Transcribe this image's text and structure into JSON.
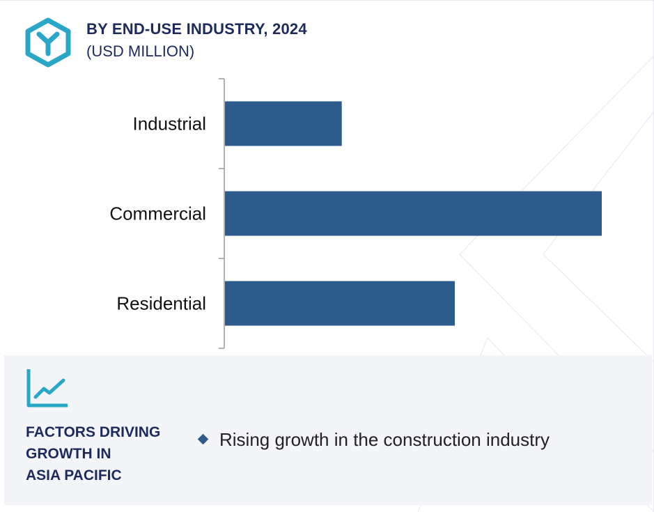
{
  "header": {
    "title": "BY END-USE INDUSTRY, 2024",
    "subtitle": "(USD MILLION)",
    "icon": "y-hexagon-icon"
  },
  "chart_data": {
    "type": "bar",
    "orientation": "horizontal",
    "title": "BY END-USE INDUSTRY, 2024",
    "subtitle": "(USD MILLION)",
    "categories": [
      "Industrial",
      "Commercial",
      "Residential"
    ],
    "values": [
      31,
      100,
      61
    ],
    "bar_color": "#2d5c8c",
    "xlim": [
      0,
      100
    ],
    "grid": false,
    "legend": "none"
  },
  "factors": {
    "icon": "trend-line-icon",
    "heading_lines": [
      "FACTORS DRIVING",
      "GROWTH IN",
      "ASIA PACIFIC"
    ],
    "items": [
      "Rising growth in the construction industry"
    ]
  },
  "colors": {
    "accent": "#2aa6c6",
    "heading": "#1d2a5c",
    "bar": "#2d5c8c",
    "panel": "#f3f5f9"
  }
}
